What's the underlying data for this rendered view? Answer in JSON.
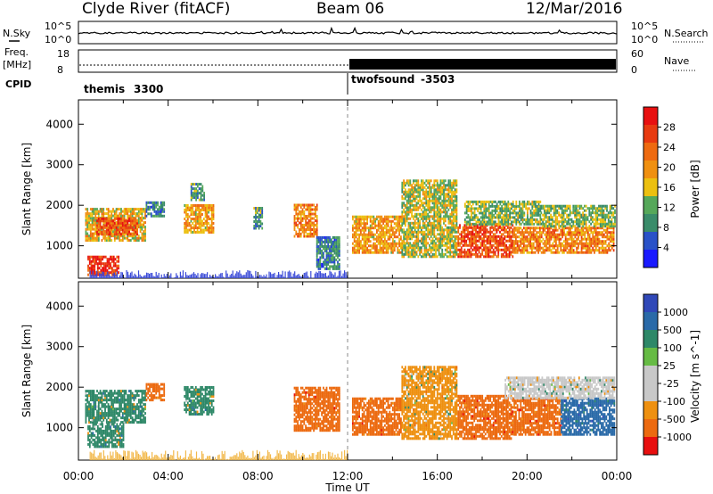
{
  "header": {
    "title": "Clyde River (fitACF)",
    "beam": "Beam 06",
    "date": "12/Mar/2016"
  },
  "noise_panel": {
    "left_label": "N.Sky",
    "right_label": "N.Search",
    "left_ticks": [
      "10^5",
      "10^0"
    ],
    "right_ticks": [
      "10^5",
      "10^0"
    ]
  },
  "freq_panel": {
    "left_label_1": "Freq.",
    "left_label_2": "[MHz]",
    "left_ticks": [
      "18",
      "8"
    ],
    "right_label": "Nave",
    "right_ticks": [
      "60",
      "0"
    ],
    "cpid_label": "CPID",
    "cpid_segments": [
      {
        "name": "themis",
        "id": "3300",
        "start": "00:00",
        "end": "12:00"
      },
      {
        "name": "twofsound",
        "id": "-3503",
        "start": "12:00",
        "end": "24:00"
      }
    ]
  },
  "colors": {
    "power": [
      "#1a1aff",
      "#2a52c8",
      "#3a8c6a",
      "#56a85a",
      "#ecc010",
      "#f09010",
      "#ee6a10",
      "#e83a10",
      "#e81010"
    ],
    "velocity": [
      "#3048b8",
      "#2a6aa8",
      "#2e8868",
      "#66bb44",
      "#c8c8c8",
      "#c8c8c8",
      "#ee9010",
      "#ec6a10",
      "#e80f0f"
    ],
    "ground_scatter_power": "#3a4ad8",
    "ground_scatter_velocity": "#f2b84a"
  },
  "chart_data": [
    {
      "type": "heatmap",
      "name": "power",
      "xlabel": "",
      "ylabel": "Slant Range [km]",
      "xlim": [
        0,
        24
      ],
      "ylim": [
        200,
        4600
      ],
      "x_ticks": [
        "00:00",
        "04:00",
        "08:00",
        "12:00",
        "16:00",
        "20:00",
        "00:00"
      ],
      "y_ticks": [
        1000,
        2000,
        3000,
        4000
      ],
      "colorbar": {
        "label": "Power [dB]",
        "ticks": [
          4,
          8,
          12,
          16,
          20,
          24,
          28
        ],
        "range": [
          0,
          30
        ]
      },
      "regions": [
        {
          "t0": 0.3,
          "t1": 3.0,
          "r0": 1100,
          "r1": 1900,
          "value": 16
        },
        {
          "t0": 0.8,
          "t1": 2.6,
          "r0": 1250,
          "r1": 1650,
          "value": 24
        },
        {
          "t0": 3.0,
          "t1": 3.8,
          "r0": 1700,
          "r1": 2050,
          "value": 8
        },
        {
          "t0": 0.4,
          "t1": 1.8,
          "r0": 250,
          "r1": 700,
          "value": 26
        },
        {
          "t0": 4.7,
          "t1": 6.0,
          "r0": 1300,
          "r1": 2000,
          "value": 18
        },
        {
          "t0": 5.0,
          "t1": 5.6,
          "r0": 2100,
          "r1": 2500,
          "value": 10
        },
        {
          "t0": 7.8,
          "t1": 8.2,
          "r0": 1400,
          "r1": 1900,
          "value": 10
        },
        {
          "t0": 9.6,
          "t1": 10.6,
          "r0": 1200,
          "r1": 2000,
          "value": 20
        },
        {
          "t0": 10.6,
          "t1": 11.6,
          "r0": 400,
          "r1": 1200,
          "value": 8
        },
        {
          "t0": 12.2,
          "t1": 14.4,
          "r0": 800,
          "r1": 1700,
          "value": 18
        },
        {
          "t0": 14.4,
          "t1": 16.9,
          "r0": 700,
          "r1": 2600,
          "value": 14
        },
        {
          "t0": 16.9,
          "t1": 19.4,
          "r0": 700,
          "r1": 1500,
          "value": 24
        },
        {
          "t0": 17.2,
          "t1": 20.6,
          "r0": 1500,
          "r1": 2100,
          "value": 12
        },
        {
          "t0": 19.4,
          "t1": 23.9,
          "r0": 800,
          "r1": 1450,
          "value": 20
        },
        {
          "t0": 20.6,
          "t1": 23.9,
          "r0": 1450,
          "r1": 2000,
          "value": 12
        }
      ],
      "ground_scatter": {
        "t0": 0.5,
        "t1": 12.0,
        "r0": 200,
        "r1": 400
      }
    },
    {
      "type": "heatmap",
      "name": "velocity",
      "xlabel": "Time UT",
      "ylabel": "Slant Range [km]",
      "xlim": [
        0,
        24
      ],
      "ylim": [
        200,
        4600
      ],
      "x_ticks": [
        "00:00",
        "04:00",
        "08:00",
        "12:00",
        "16:00",
        "20:00",
        "00:00"
      ],
      "y_ticks": [
        1000,
        2000,
        3000,
        4000
      ],
      "colorbar": {
        "label": "Velocity [m s^-1]",
        "ticks": [
          "1000",
          "500",
          "100",
          "25",
          "-25",
          "-100",
          "-500",
          "-1000"
        ]
      },
      "regions": [
        {
          "t0": 0.3,
          "t1": 3.0,
          "r0": 1100,
          "r1": 1900,
          "value": 100
        },
        {
          "t0": 3.0,
          "t1": 3.8,
          "r0": 1650,
          "r1": 2050,
          "value": -500
        },
        {
          "t0": 0.4,
          "t1": 2.0,
          "r0": 500,
          "r1": 1100,
          "value": 100
        },
        {
          "t0": 4.7,
          "t1": 6.0,
          "r0": 1300,
          "r1": 2000,
          "value": 100
        },
        {
          "t0": 9.6,
          "t1": 11.6,
          "r0": 900,
          "r1": 2000,
          "value": -500
        },
        {
          "t0": 12.2,
          "t1": 14.4,
          "r0": 800,
          "r1": 1700,
          "value": -500
        },
        {
          "t0": 14.4,
          "t1": 16.9,
          "r0": 700,
          "r1": 2500,
          "value": -100
        },
        {
          "t0": 16.9,
          "t1": 19.4,
          "r0": 700,
          "r1": 1800,
          "value": -500
        },
        {
          "t0": 19.4,
          "t1": 21.5,
          "r0": 800,
          "r1": 1700,
          "value": -500
        },
        {
          "t0": 21.5,
          "t1": 23.9,
          "r0": 800,
          "r1": 1700,
          "value": 500
        },
        {
          "t0": 19.0,
          "t1": 23.9,
          "r0": 1700,
          "r1": 2200,
          "value": 0
        }
      ],
      "ground_scatter": {
        "t0": 0.5,
        "t1": 12.0,
        "r0": 200,
        "r1": 450
      }
    }
  ]
}
